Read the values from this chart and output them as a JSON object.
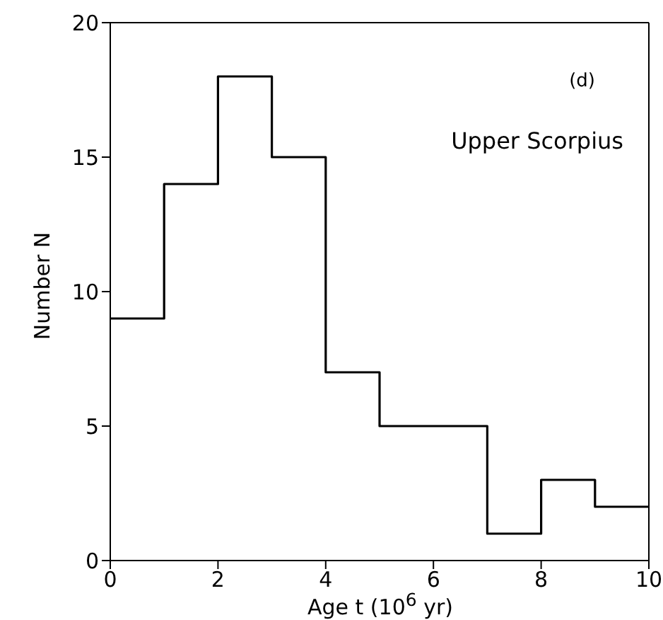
{
  "chart_data": {
    "type": "histogram",
    "xlabel": "Age t (10$^{6}$ yr)",
    "ylabel": "Number N",
    "annotations": [
      "(d)",
      "Upper Scorpius"
    ],
    "bins": [
      0,
      1,
      2,
      3,
      4,
      5,
      6,
      7,
      8,
      9,
      10
    ],
    "values": [
      9,
      14,
      18,
      15,
      7,
      5,
      5,
      1,
      3,
      2
    ],
    "color": "#000000",
    "xlim": [
      0,
      10
    ],
    "xticks": [
      0,
      2,
      4,
      6,
      8,
      10
    ],
    "ylim": [
      0,
      20
    ],
    "yticks": [
      0,
      5,
      10,
      15,
      20
    ],
    "grid": false
  }
}
